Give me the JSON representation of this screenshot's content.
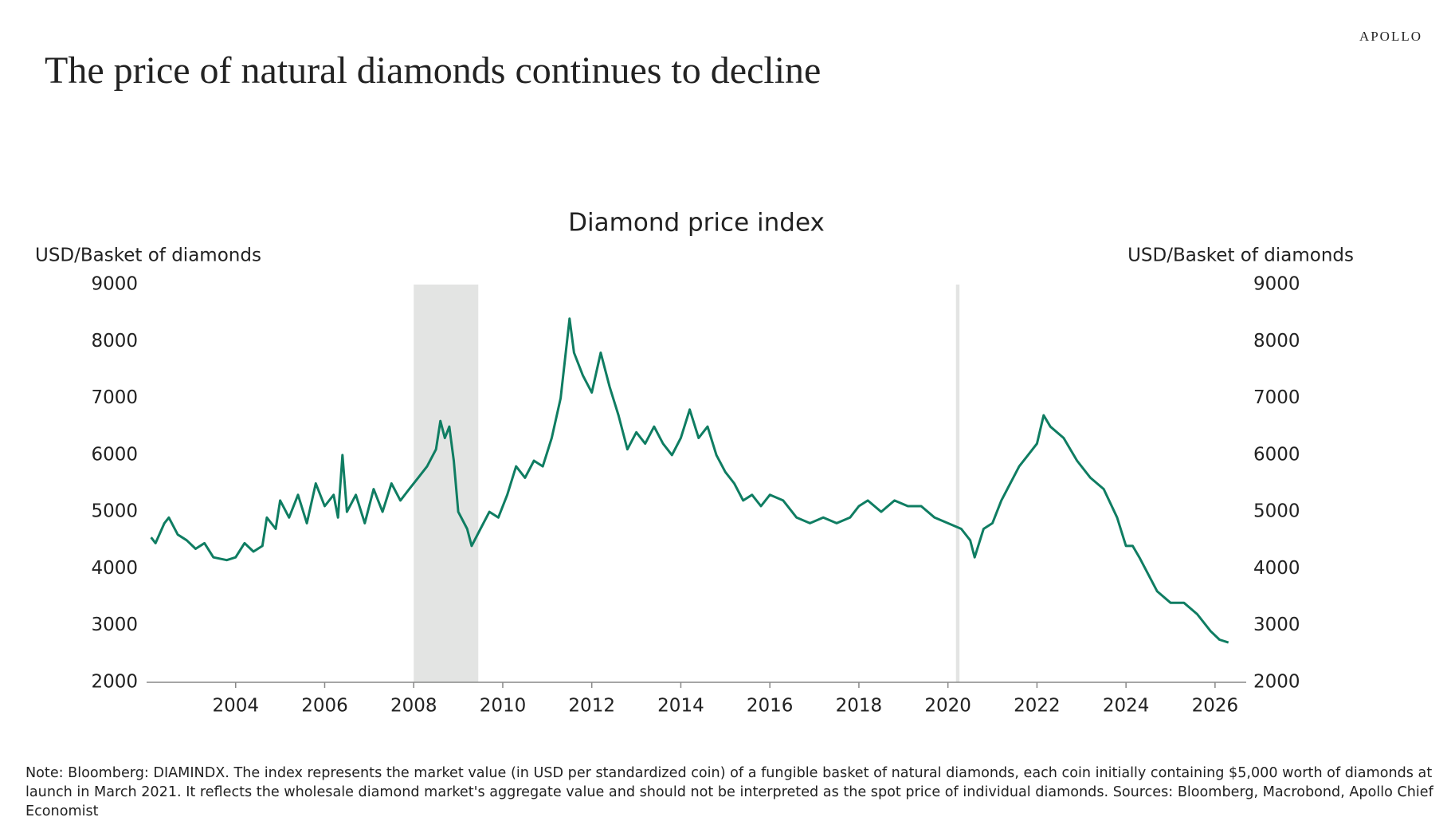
{
  "brand": "APOLLO",
  "title": "The price of natural diamonds continues to decline",
  "note": "Note: Bloomberg: DIAMINDX. The index represents the market value (in USD per standardized coin) of a fungible basket of natural diamonds, each coin initially containing $5,000 worth of diamonds at launch in March 2021. It reflects the wholesale diamond market's aggregate value and should not be interpreted as the spot price of individual diamonds. Sources: Bloomberg, Macrobond, Apollo Chief Economist",
  "chart_data": {
    "type": "line",
    "title": "Diamond price index",
    "ylabel": "USD/Basket of diamonds",
    "y2label": "USD/Basket of diamonds",
    "xlim": [
      2002,
      2026.7
    ],
    "xticks": [
      2004,
      2006,
      2008,
      2010,
      2012,
      2014,
      2016,
      2018,
      2020,
      2022,
      2024,
      2026
    ],
    "ylim": [
      2000,
      9000
    ],
    "yticks": [
      2000,
      3000,
      4000,
      5000,
      6000,
      7000,
      8000,
      9000
    ],
    "y2lim": [
      2000,
      9000
    ],
    "y2ticks": [
      2000,
      3000,
      4000,
      5000,
      6000,
      7000,
      8000,
      9000
    ],
    "shaded_periods": [
      {
        "start": 2008.0,
        "end": 2009.45,
        "color": "#e3e4e3"
      },
      {
        "start": 2020.18,
        "end": 2020.26,
        "color": "#e3e4e3"
      }
    ],
    "x": [
      2002.1,
      2002.2,
      2002.4,
      2002.5,
      2002.7,
      2002.9,
      2003.1,
      2003.3,
      2003.5,
      2003.8,
      2004.0,
      2004.2,
      2004.4,
      2004.6,
      2004.7,
      2004.9,
      2005.0,
      2005.2,
      2005.4,
      2005.6,
      2005.8,
      2006.0,
      2006.2,
      2006.3,
      2006.4,
      2006.5,
      2006.7,
      2006.9,
      2007.1,
      2007.3,
      2007.5,
      2007.7,
      2007.9,
      2008.1,
      2008.3,
      2008.5,
      2008.6,
      2008.7,
      2008.8,
      2008.9,
      2009.0,
      2009.2,
      2009.3,
      2009.5,
      2009.7,
      2009.9,
      2010.1,
      2010.3,
      2010.5,
      2010.7,
      2010.9,
      2011.1,
      2011.3,
      2011.5,
      2011.6,
      2011.8,
      2012.0,
      2012.2,
      2012.4,
      2012.6,
      2012.8,
      2013.0,
      2013.2,
      2013.4,
      2013.6,
      2013.8,
      2014.0,
      2014.2,
      2014.4,
      2014.6,
      2014.8,
      2015.0,
      2015.2,
      2015.4,
      2015.6,
      2015.8,
      2016.0,
      2016.3,
      2016.6,
      2016.9,
      2017.2,
      2017.5,
      2017.8,
      2018.0,
      2018.2,
      2018.5,
      2018.8,
      2019.1,
      2019.4,
      2019.7,
      2020.0,
      2020.3,
      2020.5,
      2020.6,
      2020.8,
      2021.0,
      2021.2,
      2021.4,
      2021.6,
      2021.8,
      2022.0,
      2022.15,
      2022.3,
      2022.6,
      2022.9,
      2023.2,
      2023.5,
      2023.8,
      2024.0,
      2024.15,
      2024.3,
      2024.5,
      2024.7,
      2025.0,
      2025.3,
      2025.6,
      2025.9,
      2026.1,
      2026.3
    ],
    "series": [
      {
        "name": "Diamond price index",
        "color": "#0f7d62",
        "values": [
          4550,
          4450,
          4800,
          4900,
          4600,
          4500,
          4350,
          4450,
          4200,
          4150,
          4200,
          4450,
          4300,
          4400,
          4900,
          4700,
          5200,
          4900,
          5300,
          4800,
          5500,
          5100,
          5300,
          4900,
          6000,
          5000,
          5300,
          4800,
          5400,
          5000,
          5500,
          5200,
          5400,
          5600,
          5800,
          6100,
          6600,
          6300,
          6500,
          5900,
          5000,
          4700,
          4400,
          4700,
          5000,
          4900,
          5300,
          5800,
          5600,
          5900,
          5800,
          6300,
          7000,
          8400,
          7800,
          7400,
          7100,
          7800,
          7200,
          6700,
          6100,
          6400,
          6200,
          6500,
          6200,
          6000,
          6300,
          6800,
          6300,
          6500,
          6000,
          5700,
          5500,
          5200,
          5300,
          5100,
          5300,
          5200,
          4900,
          4800,
          4900,
          4800,
          4900,
          5100,
          5200,
          5000,
          5200,
          5100,
          5100,
          4900,
          4800,
          4700,
          4500,
          4200,
          4700,
          4800,
          5200,
          5500,
          5800,
          6000,
          6200,
          6700,
          6500,
          6300,
          5900,
          5600,
          5400,
          4900,
          4400,
          4400,
          4200,
          3900,
          3600,
          3400,
          3400,
          3200,
          2900,
          2750,
          2700
        ]
      }
    ]
  }
}
